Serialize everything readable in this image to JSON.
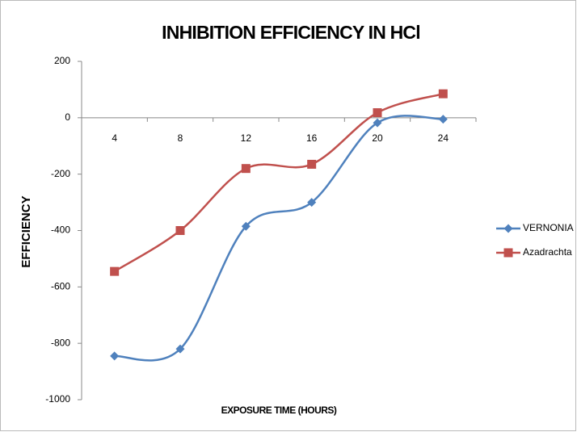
{
  "chart_data": {
    "type": "line",
    "title": "INHIBITION EFFICIENCY IN HCl",
    "x_label": "EXPOSURE TIME (HOURS)",
    "y_label": "EFFICIENCY",
    "categories": [
      "4",
      "8",
      "12",
      "16",
      "20",
      "24"
    ],
    "series": [
      {
        "name": "VERNONIA",
        "color": "#4f81bd",
        "marker": "diamond",
        "values": [
          -845,
          -820,
          -385,
          -300,
          -18,
          -5
        ]
      },
      {
        "name": "Azadrachta",
        "color": "#c0504d",
        "marker": "square",
        "values": [
          -545,
          -400,
          -180,
          -165,
          18,
          85
        ]
      }
    ],
    "ylim": [
      -1000,
      200
    ],
    "yticks": [
      -1000,
      -800,
      -600,
      -400,
      -200,
      0,
      200
    ],
    "smooth": true,
    "legend": "right"
  }
}
